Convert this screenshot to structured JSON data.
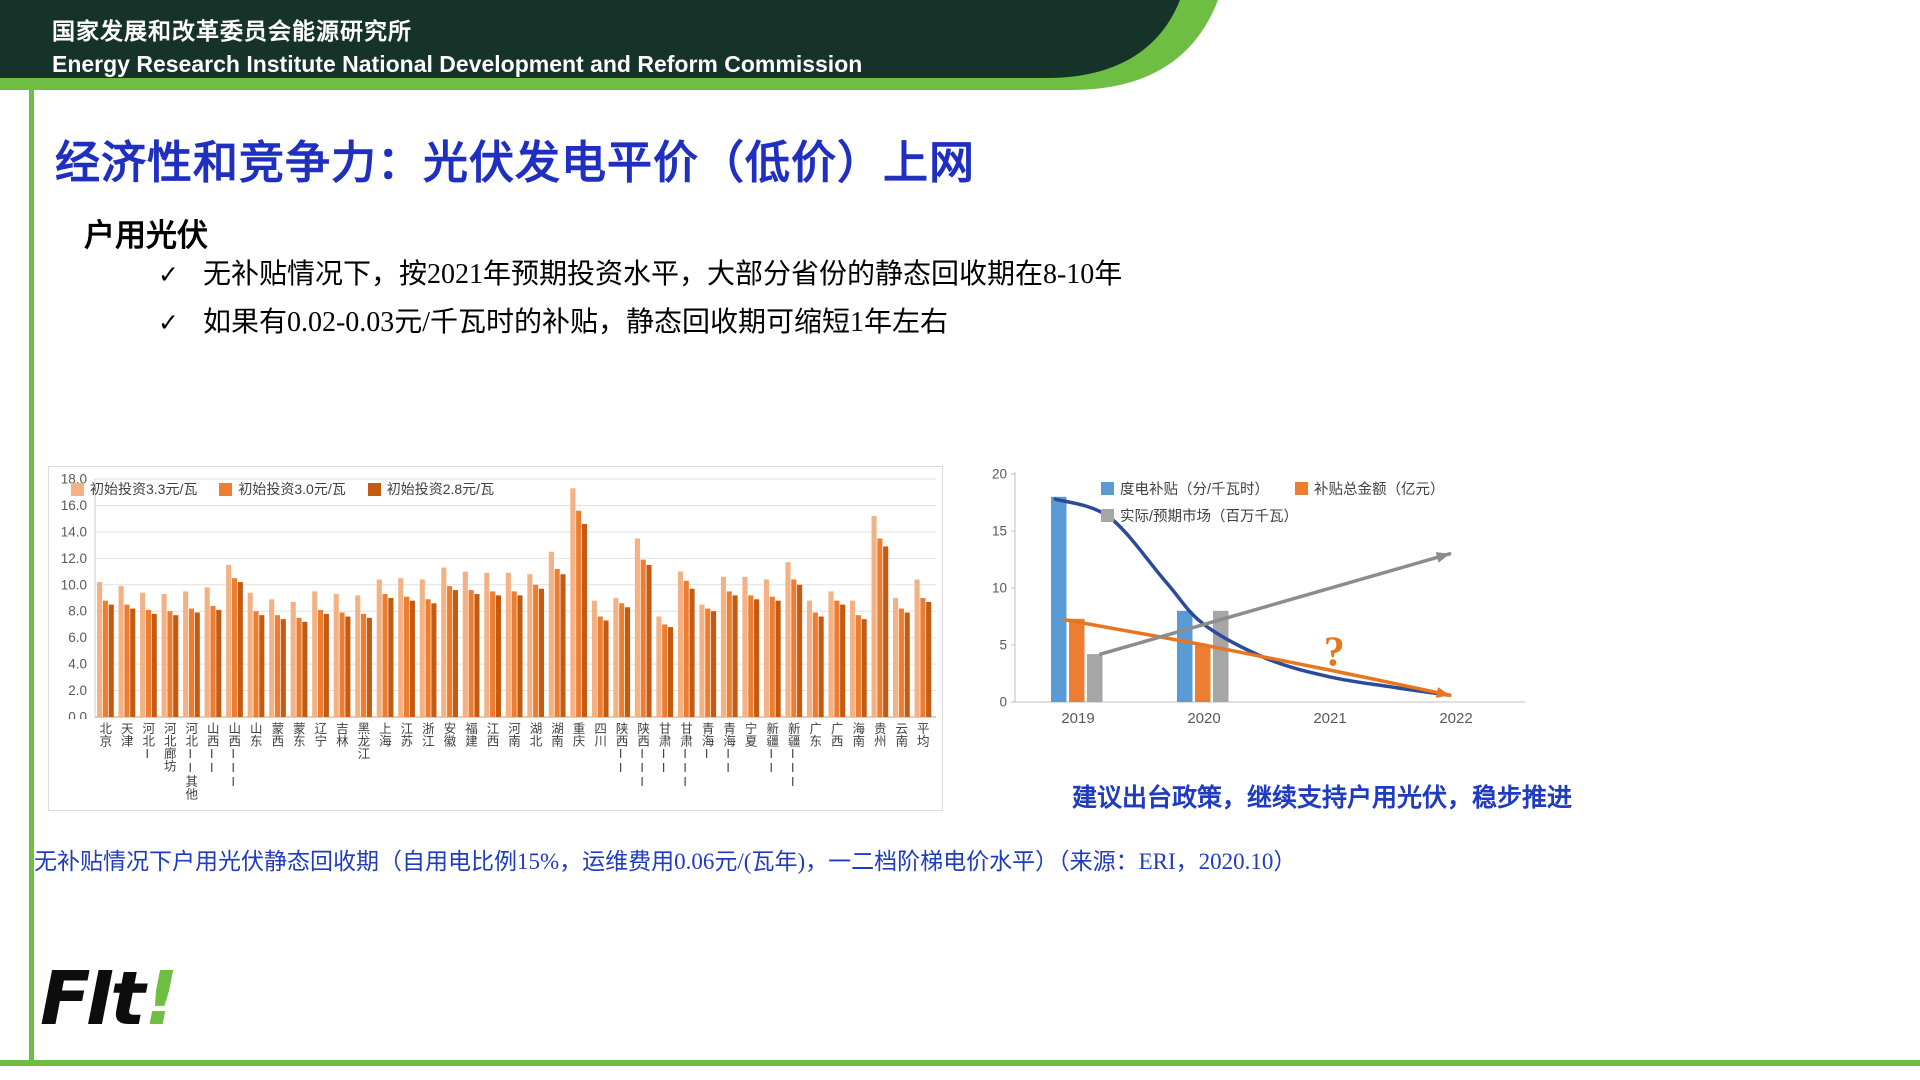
{
  "colors": {
    "header_green": "#16332A",
    "accent_green": "#6FBE44",
    "title_blue": "#1F2FC0",
    "note_blue": "#1F3BBF",
    "bar_light_orange": "#F4B183",
    "bar_orange": "#ED7D31",
    "bar_dark_orange": "#C55A11",
    "combo_blue": "#5B9BD5",
    "combo_orange": "#ED7D31",
    "combo_gray": "#A6A6A6"
  },
  "header": {
    "org_cn": "国家发展和改革委员会能源研究所",
    "org_en": "Energy Research Institute National Development and Reform Commission"
  },
  "title": "经济性和竞争力：光伏发电平价（低价）上网",
  "subtitle": "户用光伏",
  "check_glyph": "✓",
  "bullets": [
    "无补贴情况下，按2021年预期投资水平，大部分省份的静态回收期在8-10年",
    "如果有0.02-0.03元/千瓦时的补贴，静态回收期可缩短1年左右"
  ],
  "note_right": "建议出台政策，继续支持户用光伏，稳步推进",
  "caption": "无补贴情况下户用光伏静态回收期（自用电比例15%，运维费用0.06元/(瓦年)，一二档阶梯电价水平）（来源：ERI，2020.10）",
  "logo": {
    "text": "FIt",
    "accent": "!"
  },
  "chart_data": [
    {
      "type": "bar",
      "ylim": [
        0,
        18
      ],
      "ytick_step": 2,
      "grid": true,
      "legend_position": "top-left-overlay",
      "categories": [
        "北京",
        "天津",
        "河北I",
        "河北廊坊",
        "河北II其他",
        "山西II",
        "山西III",
        "山东",
        "蒙西",
        "蒙东",
        "辽宁",
        "吉林",
        "黑龙江",
        "上海",
        "江苏",
        "浙江",
        "安徽",
        "福建",
        "江西",
        "河南",
        "湖北",
        "湖南",
        "重庆",
        "四川",
        "陕西II",
        "陕西III",
        "甘肃II",
        "甘肃III",
        "青海I",
        "青海II",
        "宁夏",
        "新疆II",
        "新疆III",
        "广东",
        "广西",
        "海南",
        "贵州",
        "云南",
        "平均"
      ],
      "series": [
        {
          "name": "初始投资3.3元/瓦",
          "color": "#F4B183",
          "values": [
            10.2,
            9.9,
            9.4,
            9.3,
            9.5,
            9.8,
            11.5,
            9.4,
            8.9,
            8.7,
            9.5,
            9.3,
            9.2,
            10.4,
            10.5,
            10.4,
            11.3,
            11.0,
            10.9,
            10.9,
            10.8,
            12.5,
            17.3,
            8.8,
            9.0,
            13.5,
            7.6,
            11.0,
            8.5,
            10.6,
            10.6,
            10.4,
            11.7,
            8.8,
            9.5,
            8.8,
            15.2,
            9.0,
            10.4
          ]
        },
        {
          "name": "初始投资3.0元/瓦",
          "color": "#ED7D31",
          "values": [
            8.8,
            8.5,
            8.1,
            8.0,
            8.2,
            8.4,
            10.5,
            8.0,
            7.7,
            7.5,
            8.1,
            7.9,
            7.8,
            9.3,
            9.1,
            8.9,
            9.9,
            9.6,
            9.5,
            9.5,
            10.0,
            11.2,
            15.6,
            7.6,
            8.6,
            11.9,
            7.0,
            10.3,
            8.2,
            9.5,
            9.2,
            9.1,
            10.4,
            7.9,
            8.8,
            7.7,
            13.5,
            8.2,
            9.0
          ]
        },
        {
          "name": "初始投资2.8元/瓦",
          "color": "#C55A11",
          "values": [
            8.5,
            8.2,
            7.8,
            7.7,
            7.9,
            8.1,
            10.2,
            7.7,
            7.4,
            7.2,
            7.8,
            7.6,
            7.5,
            9.0,
            8.8,
            8.6,
            9.6,
            9.3,
            9.2,
            9.2,
            9.7,
            10.8,
            14.6,
            7.3,
            8.3,
            11.5,
            6.8,
            9.7,
            8.0,
            9.2,
            8.9,
            8.8,
            10.0,
            7.6,
            8.5,
            7.4,
            12.9,
            7.9,
            8.7
          ]
        }
      ]
    },
    {
      "type": "combo",
      "x_categories": [
        "2019",
        "2020",
        "2021",
        "2022"
      ],
      "ylim": [
        0,
        20
      ],
      "yticks": [
        0,
        5,
        10,
        15,
        20
      ],
      "grid": false,
      "legend_position": "top-overlay",
      "bar_series": [
        {
          "name": "度电补贴（分/千瓦时）",
          "color": "#5B9BD5",
          "values": [
            18,
            8,
            null,
            null
          ]
        },
        {
          "name": "补贴总金额（亿元）",
          "color": "#ED7D31",
          "values": [
            7.3,
            5,
            null,
            null
          ]
        },
        {
          "name": "实际/预期市场（百万千瓦）",
          "color": "#A6A6A6",
          "values": [
            4.2,
            8,
            null,
            null
          ]
        }
      ],
      "line_series": [
        {
          "name": "度电补贴趋势",
          "color": "#2B4A9B",
          "width": 3.5,
          "arrow": false,
          "points": [
            [
              -0.18,
              17.8
            ],
            [
              0.25,
              16.2
            ],
            [
              0.7,
              10.5
            ],
            [
              1.0,
              6.8
            ],
            [
              1.5,
              3.8
            ],
            [
              2.0,
              2.2
            ],
            [
              2.5,
              1.3
            ],
            [
              2.95,
              0.6
            ]
          ]
        },
        {
          "name": "补贴总金额趋势",
          "color": "#E8761F",
          "width": 3.5,
          "arrow": true,
          "points": [
            [
              -0.1,
              7.2
            ],
            [
              1.0,
              5.0
            ],
            [
              2.0,
              2.8
            ],
            [
              2.95,
              0.6
            ]
          ]
        },
        {
          "name": "市场趋势",
          "color": "#8C8C8C",
          "width": 3.5,
          "arrow": true,
          "points": [
            [
              0.18,
              4.2
            ],
            [
              2.95,
              13.0
            ]
          ]
        }
      ],
      "annotation": {
        "text": "?",
        "color": "#E8761F",
        "x": 1.95,
        "y": 3.2
      }
    }
  ]
}
